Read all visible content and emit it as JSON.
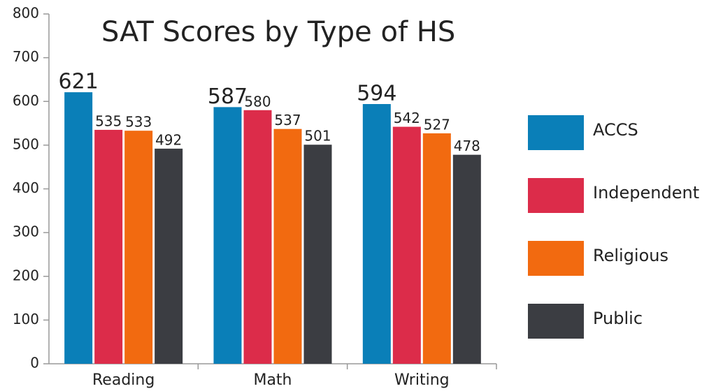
{
  "chart_data": {
    "type": "bar",
    "title": "SAT Scores by Type of HS",
    "categories": [
      "Reading",
      "Math",
      "Writing"
    ],
    "series": [
      {
        "name": "ACCS",
        "color": "#0a7fb8",
        "values": [
          621,
          587,
          594
        ]
      },
      {
        "name": "Independent",
        "color": "#dc2c4a",
        "values": [
          535,
          580,
          542
        ]
      },
      {
        "name": "Religious",
        "color": "#f26a10",
        "values": [
          533,
          537,
          527
        ]
      },
      {
        "name": "Public",
        "color": "#3b3d42",
        "values": [
          492,
          501,
          478
        ]
      }
    ],
    "ylim": [
      0,
      800
    ],
    "yticks": [
      0,
      100,
      200,
      300,
      400,
      500,
      600,
      700,
      800
    ],
    "grid": false,
    "legend": "right"
  }
}
